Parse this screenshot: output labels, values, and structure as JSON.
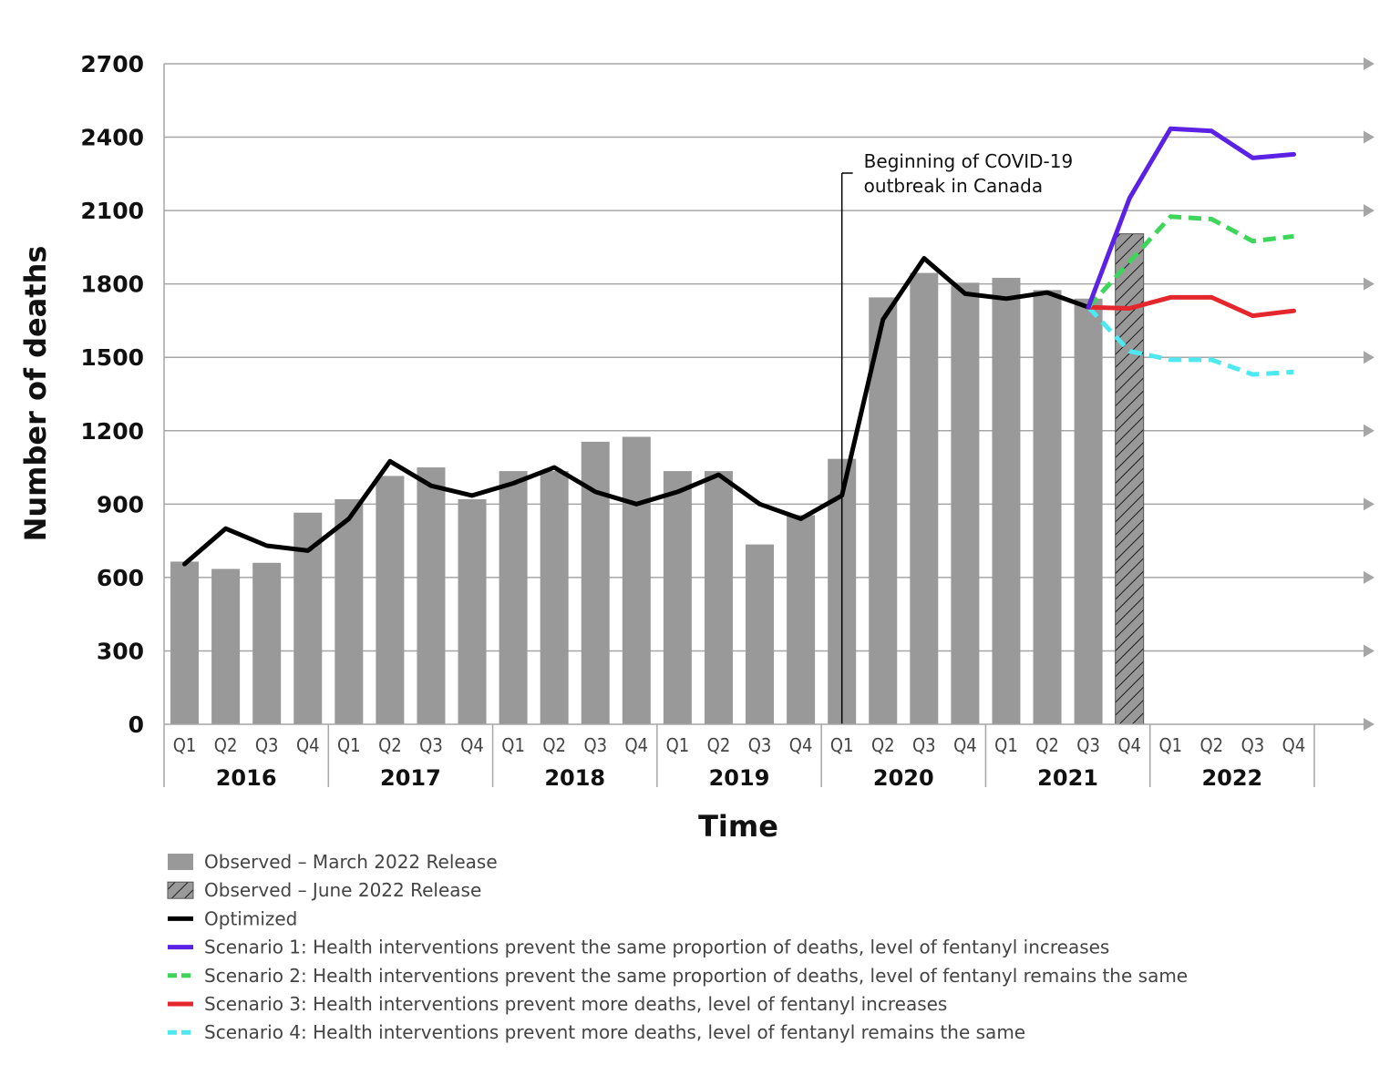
{
  "chart_data": {
    "type": "bar",
    "title": "",
    "xlabel": "Time",
    "ylabel": "Number of deaths",
    "ylim": [
      0,
      2700
    ],
    "yticks": [
      0,
      300,
      600,
      900,
      1200,
      1500,
      1800,
      2100,
      2400,
      2700
    ],
    "ytick_labels": [
      "0",
      "300",
      "600",
      "900",
      "1200",
      "1500",
      "1800",
      "2100",
      "2400",
      "2700"
    ],
    "quarters": [
      "Q1",
      "Q2",
      "Q3",
      "Q4"
    ],
    "years": [
      "2016",
      "2017",
      "2018",
      "2019",
      "2020",
      "2021",
      "2022"
    ],
    "categories": [
      "2016 Q1",
      "2016 Q2",
      "2016 Q3",
      "2016 Q4",
      "2017 Q1",
      "2017 Q2",
      "2017 Q3",
      "2017 Q4",
      "2018 Q1",
      "2018 Q2",
      "2018 Q3",
      "2018 Q4",
      "2019 Q1",
      "2019 Q2",
      "2019 Q3",
      "2019 Q4",
      "2020 Q1",
      "2020 Q2",
      "2020 Q3",
      "2020 Q4",
      "2021 Q1",
      "2021 Q2",
      "2021 Q3",
      "2021 Q4",
      "2022 Q1",
      "2022 Q2",
      "2022 Q3",
      "2022 Q4"
    ],
    "grid": true,
    "legend_position": "bottom",
    "annotation": {
      "lines": [
        "Beginning of COVID-19",
        "outbreak in Canada"
      ],
      "category_index": 16.5
    },
    "bars_march": {
      "name": "Observed – March 2022 Release",
      "color": "#999999",
      "values": [
        665,
        635,
        660,
        865,
        920,
        1015,
        1050,
        920,
        1035,
        1035,
        1155,
        1175,
        1035,
        1035,
        735,
        855,
        1085,
        1745,
        1845,
        1805,
        1825,
        1775,
        1740,
        null,
        null,
        null,
        null,
        null
      ]
    },
    "bars_june": {
      "name": "Observed – June 2022 Release",
      "color": "#999999",
      "values": [
        null,
        null,
        null,
        null,
        null,
        null,
        null,
        null,
        null,
        null,
        null,
        null,
        null,
        null,
        null,
        null,
        null,
        null,
        null,
        null,
        null,
        null,
        null,
        2005,
        null,
        null,
        null,
        null
      ]
    },
    "series": [
      {
        "name": "Optimized",
        "color": "#000000",
        "style": "solid",
        "values": [
          655,
          800,
          730,
          710,
          840,
          1075,
          975,
          935,
          985,
          1050,
          950,
          900,
          950,
          1020,
          900,
          840,
          935,
          1655,
          1905,
          1760,
          1740,
          1765,
          1705,
          null,
          null,
          null,
          null,
          null
        ]
      },
      {
        "name": "Scenario 1: Health interventions prevent the same proportion of deaths, level of fentanyl increases",
        "color": "#5b22e6",
        "style": "solid",
        "values": [
          null,
          null,
          null,
          null,
          null,
          null,
          null,
          null,
          null,
          null,
          null,
          null,
          null,
          null,
          null,
          null,
          null,
          null,
          null,
          null,
          null,
          null,
          1705,
          2150,
          2435,
          2425,
          2315,
          2330
        ]
      },
      {
        "name": "Scenario 2: Health interventions prevent the same proportion of deaths, level of fentanyl remains the same",
        "color": "#3ed65a",
        "style": "dashed",
        "values": [
          null,
          null,
          null,
          null,
          null,
          null,
          null,
          null,
          null,
          null,
          null,
          null,
          null,
          null,
          null,
          null,
          null,
          null,
          null,
          null,
          null,
          null,
          1705,
          1890,
          2075,
          2065,
          1975,
          1995
        ]
      },
      {
        "name": "Scenario 3: Health interventions prevent more deaths, level of fentanyl increases",
        "color": "#e4262d",
        "style": "solid",
        "values": [
          null,
          null,
          null,
          null,
          null,
          null,
          null,
          null,
          null,
          null,
          null,
          null,
          null,
          null,
          null,
          null,
          null,
          null,
          null,
          null,
          null,
          null,
          1705,
          1700,
          1745,
          1745,
          1670,
          1690
        ]
      },
      {
        "name": "Scenario 4: Health interventions prevent more deaths, level of fentanyl remains the same",
        "color": "#4de8f0",
        "style": "dashed",
        "values": [
          null,
          null,
          null,
          null,
          null,
          null,
          null,
          null,
          null,
          null,
          null,
          null,
          null,
          null,
          null,
          null,
          null,
          null,
          null,
          null,
          null,
          null,
          1705,
          1525,
          1490,
          1490,
          1430,
          1440
        ]
      }
    ]
  }
}
